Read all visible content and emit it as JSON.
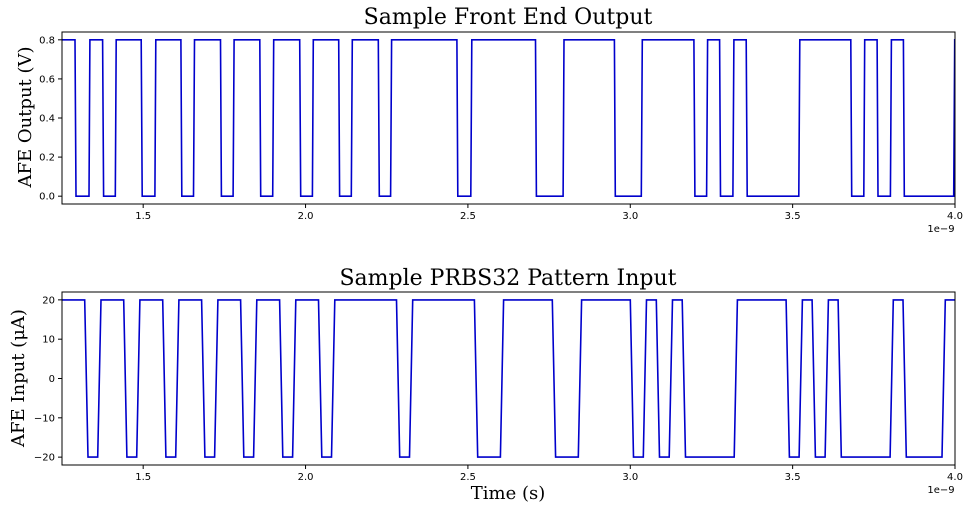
{
  "chart_data": [
    {
      "type": "line",
      "title": "Sample Front End Output",
      "xlabel": "",
      "ylabel": "AFE Output (V)",
      "xlim": [
        1.25e-09,
        4e-09
      ],
      "ylim": [
        -0.04,
        0.84
      ],
      "x_offset_label": "1e−9",
      "xticks": [
        1.5e-09,
        2e-09,
        2.5e-09,
        3e-09,
        3.5e-09,
        4e-09
      ],
      "xtick_labels": [
        "1.5",
        "2.0",
        "2.5",
        "3.0",
        "3.5",
        "4.0"
      ],
      "yticks": [
        0.0,
        0.2,
        0.4,
        0.6,
        0.8
      ],
      "ytick_labels": [
        "0.0",
        "0.2",
        "0.4",
        "0.6",
        "0.8"
      ],
      "grid": false,
      "color": "#0000cc",
      "series": [
        {
          "x": [
            1.25e-09,
            1.29e-09,
            1.293e-09,
            1.333e-09,
            1.336e-09,
            1.375e-09,
            1.378e-09,
            1.414e-09,
            1.417e-09,
            1.494e-09,
            1.497e-09,
            1.536e-09,
            1.539e-09,
            1.616e-09,
            1.619e-09,
            1.655e-09,
            1.658e-09,
            1.738e-09,
            1.741e-09,
            1.777e-09,
            1.78e-09,
            1.859e-09,
            1.862e-09,
            1.899e-09,
            1.902e-09,
            1.982e-09,
            1.985e-09,
            2.021e-09,
            2.024e-09,
            2.102e-09,
            2.105e-09,
            2.141e-09,
            2.144e-09,
            2.224e-09,
            2.227e-09,
            2.262e-09,
            2.265e-09,
            2.466e-09,
            2.469e-09,
            2.509e-09,
            2.512e-09,
            2.708e-09,
            2.711e-09,
            2.793e-09,
            2.796e-09,
            2.951e-09,
            2.954e-09,
            3.034e-09,
            3.037e-09,
            3.196e-09,
            3.199e-09,
            3.235e-09,
            3.238e-09,
            3.275e-09,
            3.278e-09,
            3.316e-09,
            3.319e-09,
            3.357e-09,
            3.36e-09,
            3.519e-09,
            3.522e-09,
            3.679e-09,
            3.682e-09,
            3.719e-09,
            3.722e-09,
            3.76e-09,
            3.763e-09,
            3.801e-09,
            3.804e-09,
            3.841e-09,
            3.844e-09,
            3.996e-09,
            3.999e-09,
            4e-09
          ],
          "y": [
            0.8,
            0.8,
            0.0,
            0.0,
            0.8,
            0.8,
            0.0,
            0.0,
            0.8,
            0.8,
            0.0,
            0.0,
            0.8,
            0.8,
            0.0,
            0.0,
            0.8,
            0.8,
            0.0,
            0.0,
            0.8,
            0.8,
            0.0,
            0.0,
            0.8,
            0.8,
            0.0,
            0.0,
            0.8,
            0.8,
            0.0,
            0.0,
            0.8,
            0.8,
            0.0,
            0.0,
            0.8,
            0.8,
            0.0,
            0.0,
            0.8,
            0.8,
            0.0,
            0.0,
            0.8,
            0.8,
            0.0,
            0.0,
            0.8,
            0.8,
            0.0,
            0.0,
            0.8,
            0.8,
            0.0,
            0.0,
            0.8,
            0.8,
            0.0,
            0.0,
            0.8,
            0.8,
            0.0,
            0.0,
            0.8,
            0.8,
            0.0,
            0.0,
            0.8,
            0.8,
            0.0,
            0.0,
            0.8,
            0.8
          ]
        }
      ]
    },
    {
      "type": "line",
      "title": "Sample PRBS32 Pattern Input",
      "xlabel": "Time (s)",
      "ylabel": "AFE Input (μA)",
      "xlim": [
        1.25e-09,
        4e-09
      ],
      "ylim": [
        -22,
        22
      ],
      "x_offset_label": "1e−9",
      "xticks": [
        1.5e-09,
        2e-09,
        2.5e-09,
        3e-09,
        3.5e-09,
        4e-09
      ],
      "xtick_labels": [
        "1.5",
        "2.0",
        "2.5",
        "3.0",
        "3.5",
        "4.0"
      ],
      "yticks": [
        20,
        10,
        0,
        -10,
        -20
      ],
      "ytick_labels": [
        "20",
        "10",
        "0",
        "−10",
        "−20"
      ],
      "grid": false,
      "color": "#0000cc",
      "series": [
        {
          "x": [
            1.25e-09,
            1.32e-09,
            1.33e-09,
            1.36e-09,
            1.37e-09,
            1.44e-09,
            1.45e-09,
            1.48e-09,
            1.49e-09,
            1.56e-09,
            1.57e-09,
            1.6e-09,
            1.61e-09,
            1.68e-09,
            1.69e-09,
            1.72e-09,
            1.73e-09,
            1.8e-09,
            1.81e-09,
            1.84e-09,
            1.85e-09,
            1.92e-09,
            1.93e-09,
            1.96e-09,
            1.97e-09,
            2.04e-09,
            2.05e-09,
            2.08e-09,
            2.09e-09,
            2.28e-09,
            2.29e-09,
            2.32e-09,
            2.33e-09,
            2.52e-09,
            2.53e-09,
            2.6e-09,
            2.61e-09,
            2.76e-09,
            2.77e-09,
            2.84e-09,
            2.85e-09,
            3e-09,
            3.01e-09,
            3.04e-09,
            3.05e-09,
            3.08e-09,
            3.09e-09,
            3.12e-09,
            3.13e-09,
            3.16e-09,
            3.17e-09,
            3.32e-09,
            3.33e-09,
            3.48e-09,
            3.49e-09,
            3.52e-09,
            3.53e-09,
            3.56e-09,
            3.57e-09,
            3.6e-09,
            3.61e-09,
            3.64e-09,
            3.65e-09,
            3.8e-09,
            3.81e-09,
            3.84e-09,
            3.85e-09,
            3.96e-09,
            3.97e-09,
            4e-09
          ],
          "y": [
            20,
            20,
            -20,
            -20,
            20,
            20,
            -20,
            -20,
            20,
            20,
            -20,
            -20,
            20,
            20,
            -20,
            -20,
            20,
            20,
            -20,
            -20,
            20,
            20,
            -20,
            -20,
            20,
            20,
            -20,
            -20,
            20,
            20,
            -20,
            -20,
            20,
            20,
            -20,
            -20,
            20,
            20,
            -20,
            -20,
            20,
            20,
            -20,
            -20,
            20,
            20,
            -20,
            -20,
            20,
            20,
            -20,
            -20,
            20,
            20,
            -20,
            -20,
            20,
            20,
            -20,
            -20,
            20,
            20,
            -20,
            -20,
            20,
            20,
            -20,
            -20,
            20,
            20
          ]
        }
      ]
    }
  ]
}
